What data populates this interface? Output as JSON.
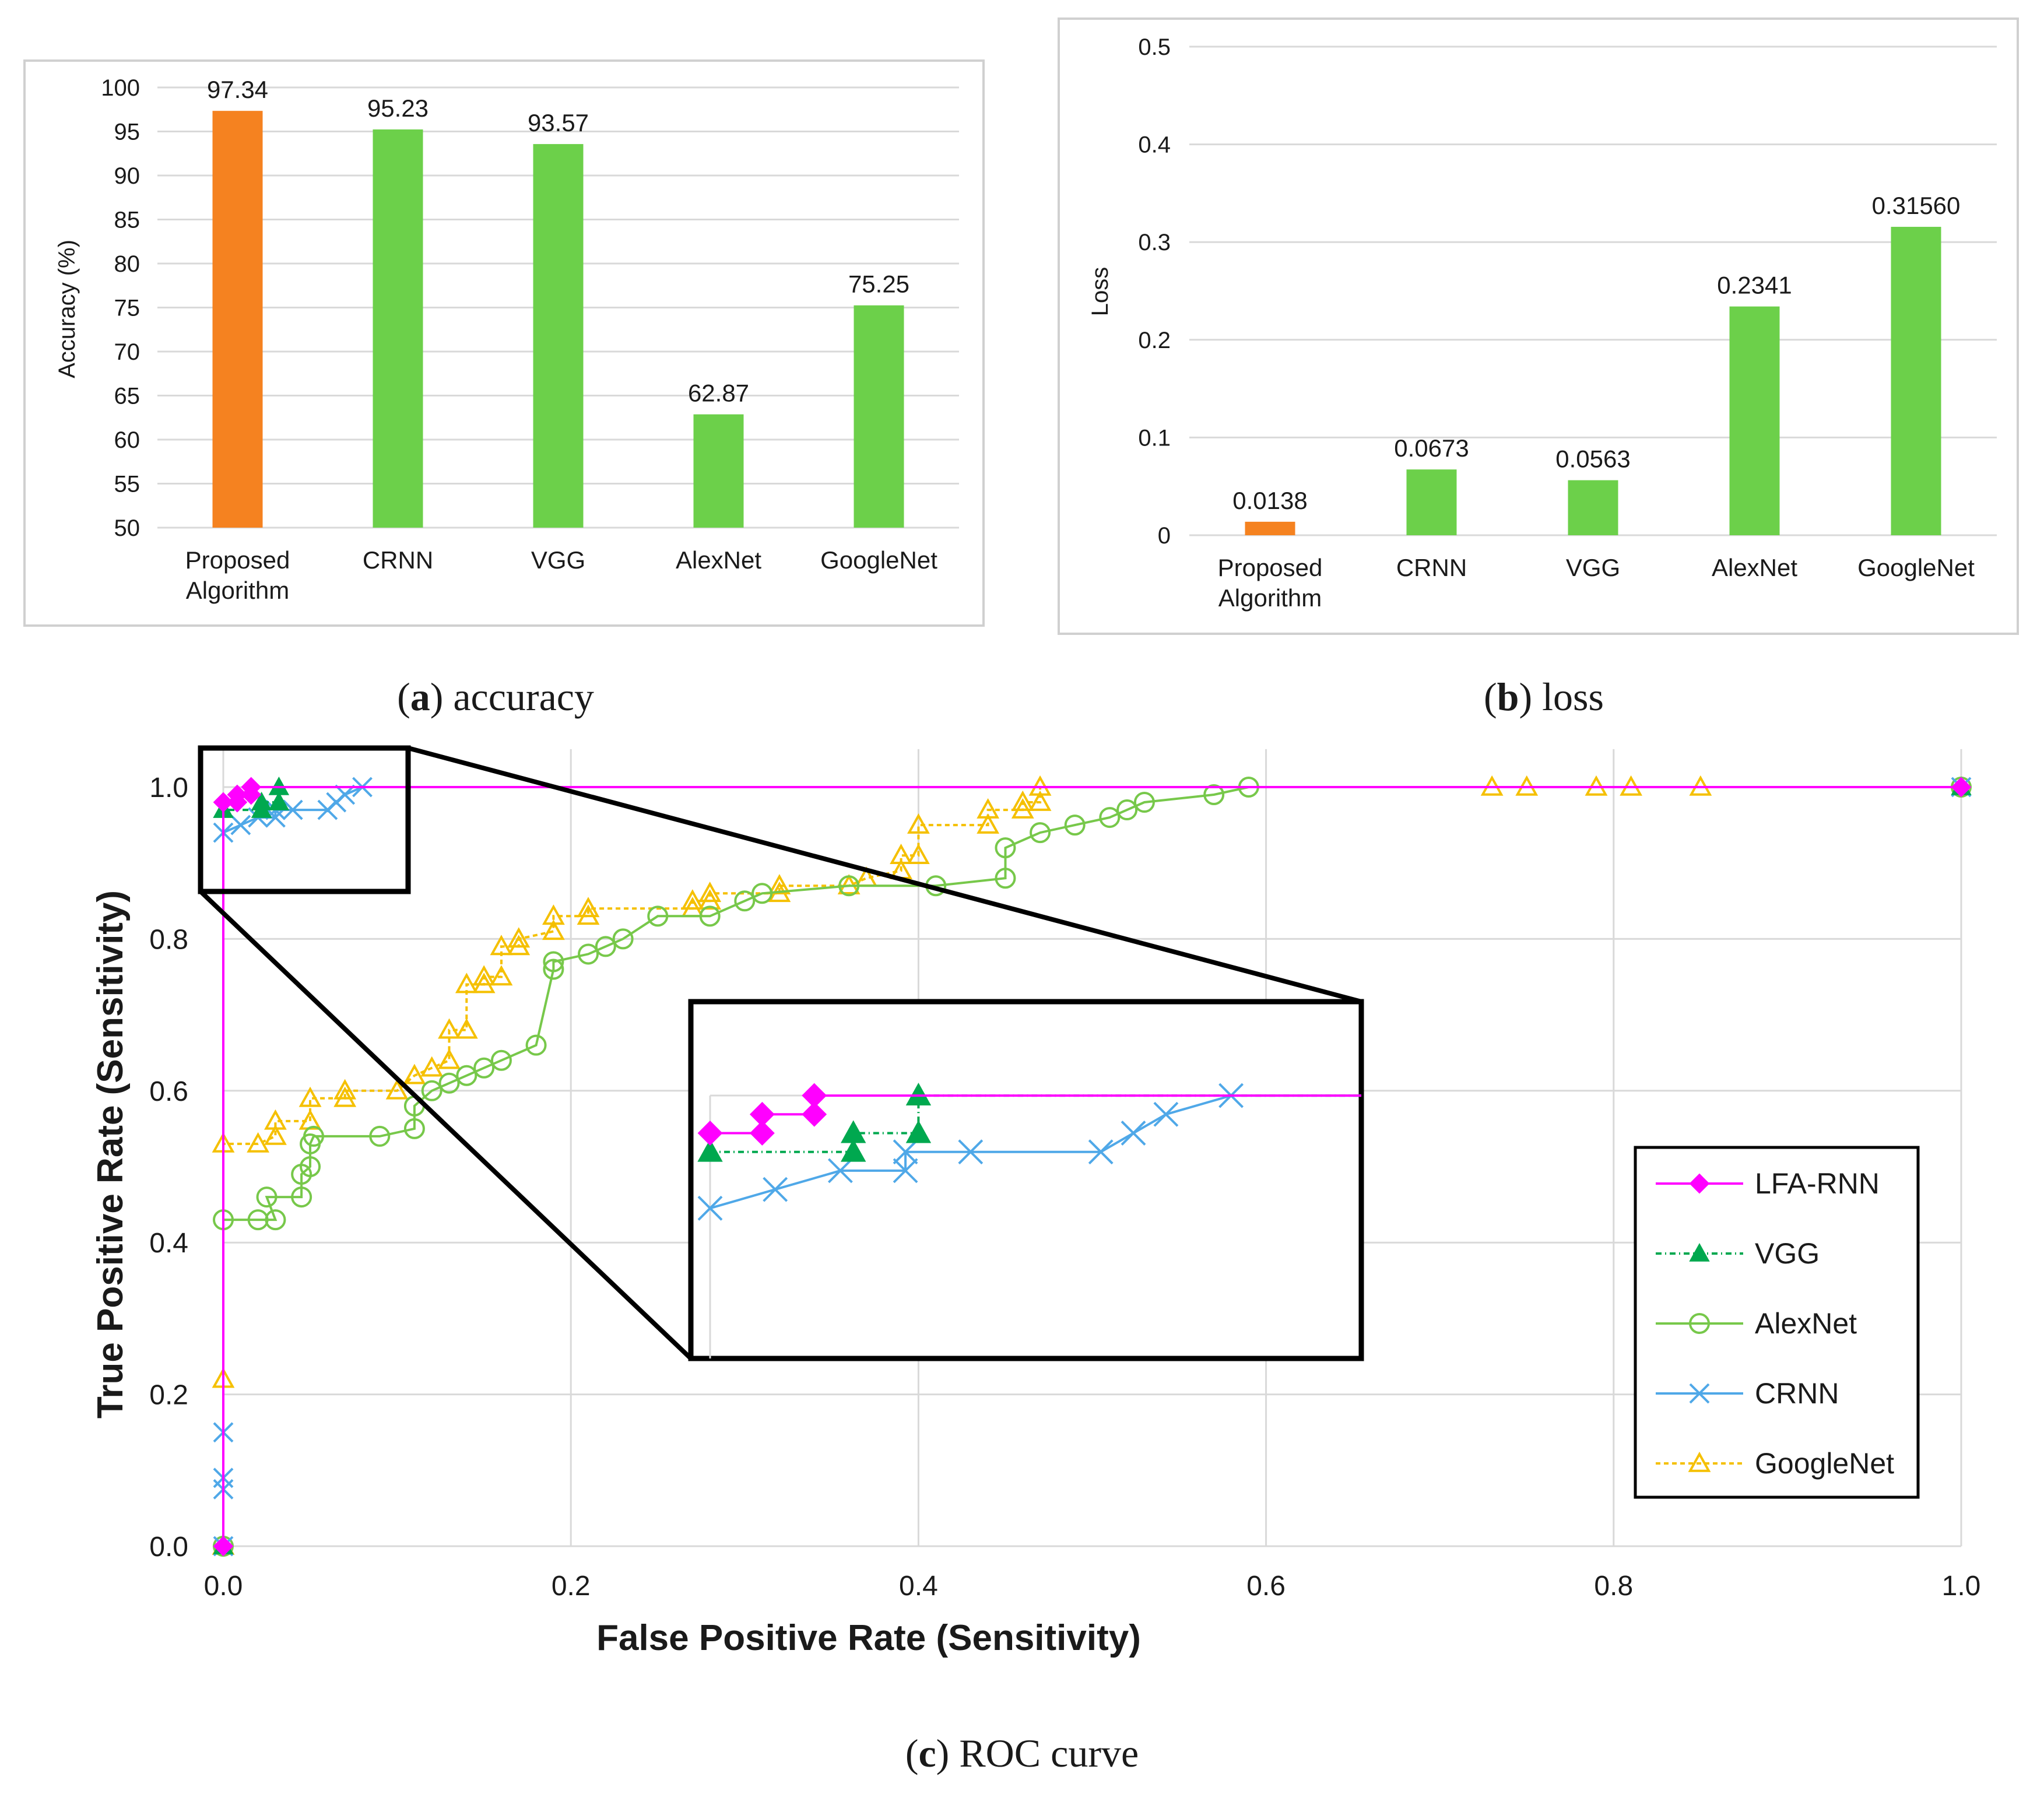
{
  "colors": {
    "proposed": "#F58220",
    "bar": "#6CD04A",
    "grid": "#D9D9D9",
    "frame": "#D0D0D0",
    "lfa": "#FF00FF",
    "vgg": "#00A84F",
    "alexnet": "#77C84A",
    "crnn": "#4FA8E8",
    "googlenet": "#F5C000"
  },
  "panels": {
    "a": {
      "letter": "a",
      "caption": " accuracy"
    },
    "b": {
      "letter": "b",
      "caption": " loss"
    },
    "c": {
      "letter": "c",
      "caption": " ROC curve"
    }
  },
  "chart_data": [
    {
      "type": "bar",
      "panel": "a",
      "categories": [
        "Proposed\nAlgorithm",
        "CRNN",
        "VGG",
        "AlexNet",
        "GoogleNet"
      ],
      "values": [
        97.34,
        95.23,
        93.57,
        62.87,
        75.25
      ],
      "value_labels": [
        "97.34",
        "95.23",
        "93.57",
        "62.87",
        "75.25"
      ],
      "ylabel": "Accuracy (%)",
      "ylim": [
        50,
        100
      ],
      "yticks": [
        "50",
        "55",
        "60",
        "65",
        "70",
        "75",
        "80",
        "85",
        "90",
        "95",
        "100"
      ],
      "highlight_index": 0
    },
    {
      "type": "bar",
      "panel": "b",
      "categories": [
        "Proposed\nAlgorithm",
        "CRNN",
        "VGG",
        "AlexNet",
        "GoogleNet"
      ],
      "values": [
        0.0138,
        0.0673,
        0.0563,
        0.2341,
        0.3156
      ],
      "value_labels": [
        "0.0138",
        "0.0673",
        "0.0563",
        "0.2341",
        "0.31560"
      ],
      "ylabel": "Loss",
      "ylim": [
        0,
        0.5
      ],
      "yticks": [
        "0",
        "0.1",
        "0.2",
        "0.3",
        "0.4",
        "0.5"
      ],
      "highlight_index": 0
    },
    {
      "type": "line",
      "panel": "c",
      "xlabel": "False Positive Rate (Sensitivity)",
      "ylabel": "True Positive Rate (Sensitivity)",
      "xlim": [
        0,
        1
      ],
      "ylim": [
        0,
        1
      ],
      "xticks": [
        "0.0",
        "0.2",
        "0.4",
        "0.6",
        "0.8",
        "1.0"
      ],
      "yticks": [
        "0.0",
        "0.2",
        "0.4",
        "0.6",
        "0.8",
        "1.0"
      ],
      "legend_position": "right",
      "zoom_region": {
        "x": [
          0,
          0.1
        ],
        "y": [
          0.86,
          1.05
        ]
      },
      "series": [
        {
          "name": "LFA-RNN",
          "key": "lfa",
          "marker": "diamond",
          "dash": "",
          "points": [
            [
              0,
              0
            ],
            [
              0,
              0.98
            ],
            [
              0.008,
              0.98
            ],
            [
              0.008,
              0.99
            ],
            [
              0.016,
              0.99
            ],
            [
              0.016,
              1.0
            ],
            [
              1.0,
              1.0
            ]
          ]
        },
        {
          "name": "VGG",
          "key": "vgg",
          "marker": "triangle",
          "dash": "10,6,2,6",
          "points": [
            [
              0,
              0
            ],
            [
              0,
              0.97
            ],
            [
              0.022,
              0.97
            ],
            [
              0.022,
              0.98
            ],
            [
              0.032,
              0.98
            ],
            [
              0.032,
              1.0
            ],
            [
              1.0,
              1.0
            ]
          ]
        },
        {
          "name": "AlexNet",
          "key": "alexnet",
          "marker": "circle",
          "dash": "",
          "points": [
            [
              0,
              0
            ],
            [
              0,
              0.43
            ],
            [
              0.02,
              0.43
            ],
            [
              0.03,
              0.43
            ],
            [
              0.025,
              0.46
            ],
            [
              0.045,
              0.46
            ],
            [
              0.045,
              0.49
            ],
            [
              0.05,
              0.5
            ],
            [
              0.05,
              0.53
            ],
            [
              0.052,
              0.54
            ],
            [
              0.09,
              0.54
            ],
            [
              0.11,
              0.55
            ],
            [
              0.11,
              0.58
            ],
            [
              0.12,
              0.6
            ],
            [
              0.13,
              0.61
            ],
            [
              0.14,
              0.62
            ],
            [
              0.15,
              0.63
            ],
            [
              0.16,
              0.64
            ],
            [
              0.18,
              0.66
            ],
            [
              0.19,
              0.76
            ],
            [
              0.19,
              0.77
            ],
            [
              0.21,
              0.78
            ],
            [
              0.22,
              0.79
            ],
            [
              0.23,
              0.8
            ],
            [
              0.25,
              0.83
            ],
            [
              0.28,
              0.83
            ],
            [
              0.3,
              0.85
            ],
            [
              0.31,
              0.86
            ],
            [
              0.36,
              0.87
            ],
            [
              0.41,
              0.87
            ],
            [
              0.45,
              0.88
            ],
            [
              0.45,
              0.92
            ],
            [
              0.47,
              0.94
            ],
            [
              0.49,
              0.95
            ],
            [
              0.51,
              0.96
            ],
            [
              0.52,
              0.97
            ],
            [
              0.53,
              0.98
            ],
            [
              0.57,
              0.99
            ],
            [
              0.59,
              1.0
            ],
            [
              1.0,
              1.0
            ]
          ]
        },
        {
          "name": "CRNN",
          "key": "crnn",
          "marker": "x",
          "dash": "",
          "points": [
            [
              0,
              0
            ],
            [
              0,
              0.075
            ],
            [
              0,
              0.09
            ],
            [
              0,
              0.15
            ],
            [
              0,
              0.94
            ],
            [
              0.01,
              0.95
            ],
            [
              0.02,
              0.96
            ],
            [
              0.03,
              0.96
            ],
            [
              0.03,
              0.97
            ],
            [
              0.04,
              0.97
            ],
            [
              0.06,
              0.97
            ],
            [
              0.065,
              0.98
            ],
            [
              0.07,
              0.99
            ],
            [
              0.08,
              1.0
            ],
            [
              1.0,
              1.0
            ]
          ]
        },
        {
          "name": "GoogleNet",
          "key": "googlenet",
          "marker": "triangle-open",
          "dash": "8,6",
          "points": [
            [
              0,
              0
            ],
            [
              0,
              0.22
            ],
            [
              0,
              0.53
            ],
            [
              0.02,
              0.53
            ],
            [
              0.03,
              0.54
            ],
            [
              0.03,
              0.56
            ],
            [
              0.05,
              0.56
            ],
            [
              0.05,
              0.59
            ],
            [
              0.07,
              0.59
            ],
            [
              0.07,
              0.6
            ],
            [
              0.1,
              0.6
            ],
            [
              0.11,
              0.62
            ],
            [
              0.12,
              0.63
            ],
            [
              0.13,
              0.64
            ],
            [
              0.13,
              0.68
            ],
            [
              0.14,
              0.68
            ],
            [
              0.14,
              0.74
            ],
            [
              0.15,
              0.74
            ],
            [
              0.15,
              0.75
            ],
            [
              0.16,
              0.75
            ],
            [
              0.16,
              0.79
            ],
            [
              0.17,
              0.79
            ],
            [
              0.17,
              0.8
            ],
            [
              0.19,
              0.81
            ],
            [
              0.19,
              0.83
            ],
            [
              0.21,
              0.83
            ],
            [
              0.21,
              0.84
            ],
            [
              0.27,
              0.84
            ],
            [
              0.27,
              0.85
            ],
            [
              0.28,
              0.85
            ],
            [
              0.28,
              0.86
            ],
            [
              0.32,
              0.86
            ],
            [
              0.32,
              0.87
            ],
            [
              0.36,
              0.87
            ],
            [
              0.37,
              0.88
            ],
            [
              0.39,
              0.89
            ],
            [
              0.39,
              0.91
            ],
            [
              0.4,
              0.91
            ],
            [
              0.4,
              0.95
            ],
            [
              0.44,
              0.95
            ],
            [
              0.44,
              0.97
            ],
            [
              0.46,
              0.97
            ],
            [
              0.46,
              0.98
            ],
            [
              0.47,
              0.98
            ],
            [
              0.47,
              1.0
            ],
            [
              0.73,
              1.0
            ],
            [
              0.75,
              1.0
            ],
            [
              0.79,
              1.0
            ],
            [
              0.81,
              1.0
            ],
            [
              0.85,
              1.0
            ]
          ]
        }
      ]
    }
  ]
}
